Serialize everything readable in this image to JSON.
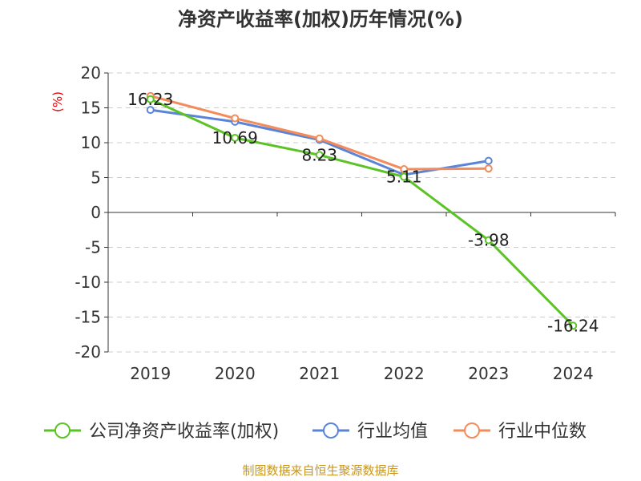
{
  "chart_data": {
    "type": "line",
    "title": "净资产收益率(加权)历年情况(%)",
    "ylabel": "(%)",
    "categories": [
      "2019",
      "2020",
      "2021",
      "2022",
      "2023",
      "2024"
    ],
    "ylim": [
      -20,
      20
    ],
    "yticks": [
      20,
      15,
      10,
      5,
      0,
      -5,
      -10,
      -15,
      -20
    ],
    "grid": true,
    "legend_position": "bottom",
    "series": [
      {
        "name": "公司净资产收益率(加权)",
        "color": "#5cc326",
        "values": [
          16.23,
          10.69,
          8.23,
          5.11,
          -3.98,
          -16.24
        ],
        "labels": [
          "16.23",
          "10.69",
          "8.23",
          "5.11",
          "-3.98",
          "-16.24"
        ]
      },
      {
        "name": "行业均值",
        "color": "#5b84d8",
        "values": [
          14.7,
          13.0,
          10.4,
          5.4,
          7.4,
          null
        ]
      },
      {
        "name": "行业中位数",
        "color": "#f48b5a",
        "values": [
          16.7,
          13.5,
          10.6,
          6.2,
          6.3,
          null
        ]
      }
    ]
  },
  "footer": {
    "source": "制图数据来自恒生聚源数据库"
  }
}
